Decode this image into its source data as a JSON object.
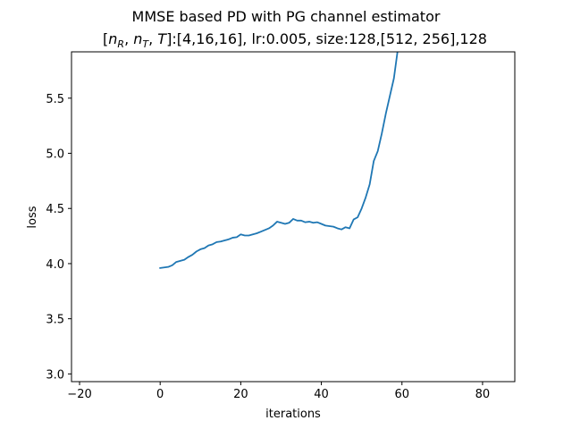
{
  "chart_data": {
    "type": "line",
    "title": "MMSE based PD with PG channel estimator",
    "subtitle": {
      "parts": [
        "[",
        "n",
        "R",
        ", ",
        "n",
        "T",
        ", ",
        "T",
        "]:[4,16,16], lr:0.005, size:128,[512, 256],128"
      ]
    },
    "xlabel": "iterations",
    "ylabel": "loss",
    "xlim": [
      -22,
      88
    ],
    "ylim": [
      2.93,
      5.92
    ],
    "xticks": [
      -20,
      0,
      20,
      40,
      60,
      80
    ],
    "xtick_labels": [
      "−20",
      "0",
      "20",
      "40",
      "60",
      "80"
    ],
    "yticks": [
      3.0,
      3.5,
      4.0,
      4.5,
      5.0,
      5.5
    ],
    "ytick_labels": [
      "3.0",
      "3.5",
      "4.0",
      "4.5",
      "5.0",
      "5.5"
    ],
    "grid": false,
    "series": [
      {
        "color": "#1f77b4",
        "x": [
          0,
          1,
          2,
          3,
          4,
          5,
          6,
          7,
          8,
          9,
          10,
          11,
          12,
          13,
          14,
          15,
          16,
          17,
          18,
          19,
          20,
          21,
          22,
          23,
          24,
          25,
          26,
          27,
          28,
          29,
          30,
          31,
          32,
          33,
          34,
          35,
          36,
          37,
          38,
          39,
          40,
          41,
          42,
          43,
          44,
          45,
          46,
          47,
          48,
          49,
          50,
          51,
          52,
          53,
          54,
          55,
          56,
          57,
          58,
          59
        ],
        "y": [
          3.96,
          3.965,
          3.97,
          3.985,
          4.015,
          4.025,
          4.035,
          4.06,
          4.08,
          4.11,
          4.13,
          4.14,
          4.165,
          4.175,
          4.195,
          4.2,
          4.21,
          4.22,
          4.235,
          4.24,
          4.265,
          4.255,
          4.255,
          4.265,
          4.275,
          4.29,
          4.305,
          4.32,
          4.345,
          4.38,
          4.37,
          4.36,
          4.37,
          4.405,
          4.39,
          4.39,
          4.375,
          4.38,
          4.37,
          4.375,
          4.36,
          4.345,
          4.34,
          4.335,
          4.32,
          4.31,
          4.33,
          4.32,
          4.4,
          4.42,
          4.5,
          4.6,
          4.72,
          4.93,
          5.02,
          5.18,
          5.36,
          5.52,
          5.68,
          5.95
        ]
      }
    ]
  }
}
